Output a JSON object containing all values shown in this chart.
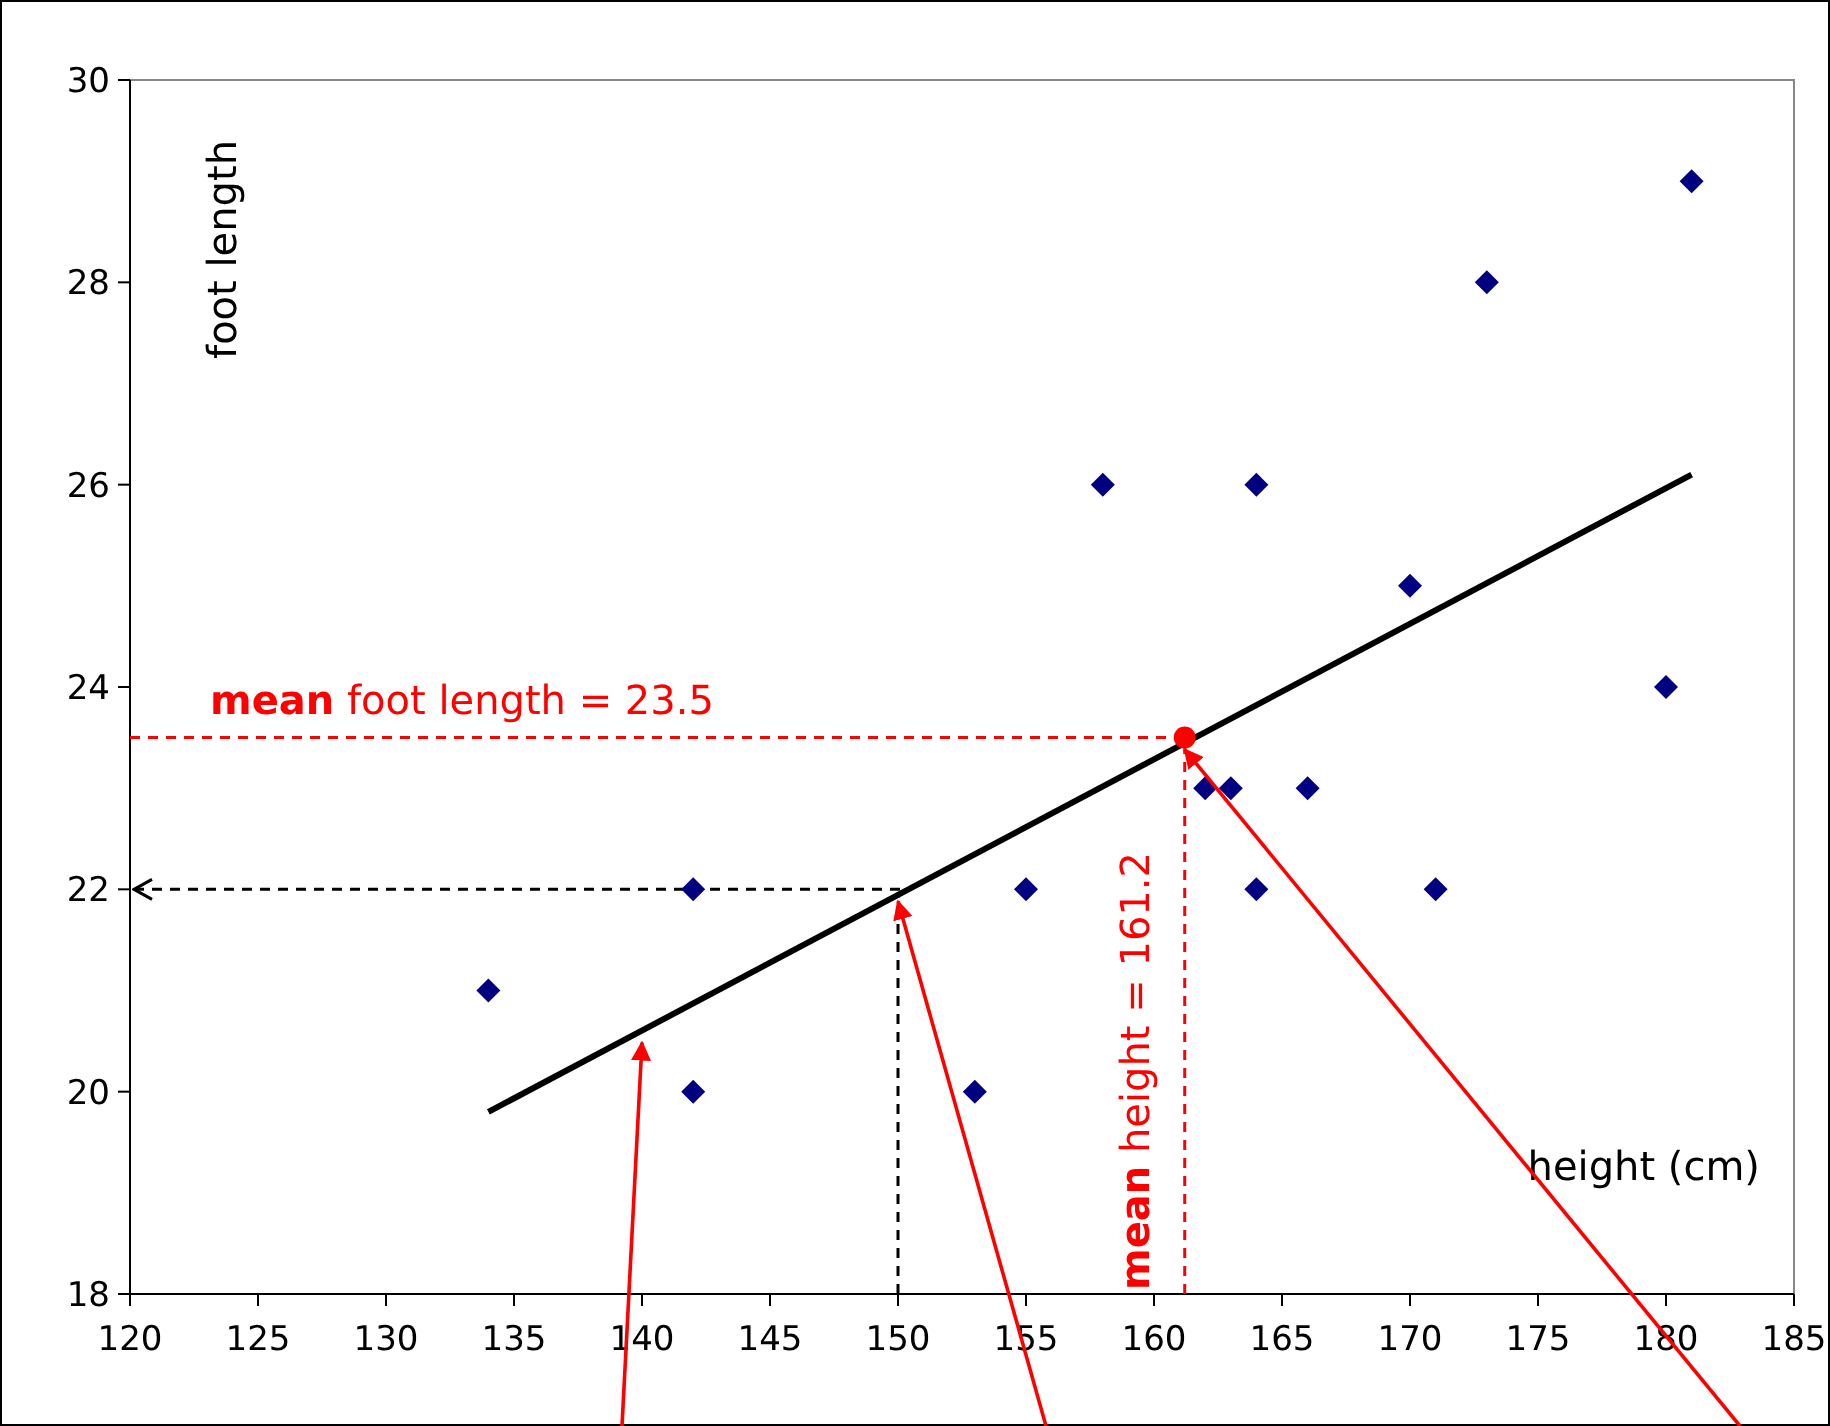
{
  "chart_data": {
    "type": "scatter",
    "xlabel": "height (cm)",
    "ylabel": "foot length",
    "xlim": [
      120,
      185
    ],
    "xticks": [
      120,
      125,
      130,
      135,
      140,
      145,
      150,
      155,
      160,
      165,
      170,
      175,
      180,
      185
    ],
    "ylim": [
      18,
      30
    ],
    "yticks": [
      18,
      20,
      22,
      24,
      26,
      28,
      30
    ],
    "grid": false,
    "series": [
      {
        "color": "#000080",
        "marker": "diamond",
        "x": [
          134,
          142,
          142,
          153,
          155,
          158,
          162,
          163,
          164,
          164,
          166,
          170,
          171,
          173,
          180,
          181
        ],
        "values": [
          21,
          22,
          20,
          20,
          22,
          26,
          23,
          23,
          26,
          22,
          23,
          25,
          22,
          28,
          24,
          29
        ]
      },
      {
        "type": "line",
        "color": "#000000",
        "x": [
          134,
          181
        ],
        "values": [
          19.8,
          26.1
        ]
      },
      {
        "color": "#ff0000",
        "marker": "circle",
        "x": [
          161.2
        ],
        "values": [
          23.5
        ]
      }
    ],
    "ref_lines": [
      {
        "axis": "y",
        "value": 23.5,
        "label": "mean foot length = 23.5",
        "color": "#ff0000",
        "line_style": "dashed"
      },
      {
        "axis": "x",
        "value": 161.2,
        "label": "mean height = 161.2",
        "color": "#ff0000",
        "line_style": "dashed"
      },
      {
        "axis": "y",
        "value": 22,
        "label": null,
        "color": "#000000",
        "line_style": "dashed"
      },
      {
        "axis": "x",
        "value": 150,
        "label": null,
        "color": "#000000",
        "line_style": "dashed"
      }
    ]
  }
}
